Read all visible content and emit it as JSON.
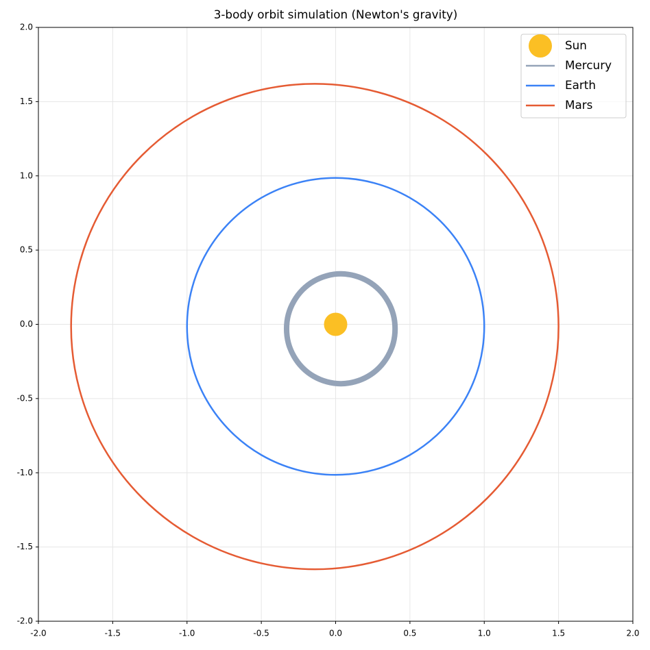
{
  "chart_data": {
    "type": "line",
    "title": "3-body orbit simulation (Newton's gravity)",
    "xlim": [
      -2,
      2
    ],
    "ylim": [
      -2,
      2
    ],
    "xticks": [
      {
        "value": -2,
        "label": "-2.0"
      },
      {
        "value": -1.5,
        "label": "-1.5"
      },
      {
        "value": -1,
        "label": "-1.0"
      },
      {
        "value": -0.5,
        "label": "-0.5"
      },
      {
        "value": 0,
        "label": "0.0"
      },
      {
        "value": 0.5,
        "label": "0.5"
      },
      {
        "value": 1,
        "label": "1.0"
      },
      {
        "value": 1.5,
        "label": "1.5"
      },
      {
        "value": 2,
        "label": "2.0"
      }
    ],
    "yticks": [
      {
        "value": -2,
        "label": "-2.0"
      },
      {
        "value": -1.5,
        "label": "-1.5"
      },
      {
        "value": -1,
        "label": "-1.0"
      },
      {
        "value": -0.5,
        "label": "-0.5"
      },
      {
        "value": 0,
        "label": "0.0"
      },
      {
        "value": 0.5,
        "label": "0.5"
      },
      {
        "value": 1,
        "label": "1.0"
      },
      {
        "value": 1.5,
        "label": "1.5"
      },
      {
        "value": 2,
        "label": "2.0"
      }
    ],
    "grid": true,
    "legend": "upper right",
    "series": [
      {
        "name": "Sun",
        "color": "#fbbf24",
        "style": "marker",
        "x": [
          0
        ],
        "y": [
          0
        ]
      },
      {
        "name": "Mercury",
        "color": "#94a3b8",
        "style": "line",
        "x": [
          0.4,
          0.388,
          0.351,
          0.293,
          0.218,
          0.129,
          0.035,
          -0.059,
          -0.148,
          -0.223,
          -0.281,
          -0.318,
          -0.33,
          -0.318,
          -0.281,
          -0.223,
          -0.148,
          -0.059,
          0.035,
          0.129,
          0.218,
          0.293,
          0.351,
          0.388,
          0.4
        ],
        "y": [
          -0.03,
          0.066,
          0.155,
          0.232,
          0.29,
          0.327,
          0.34,
          0.327,
          0.29,
          0.232,
          0.155,
          0.066,
          -0.03,
          -0.126,
          -0.215,
          -0.292,
          -0.35,
          -0.387,
          -0.4,
          -0.387,
          -0.35,
          -0.292,
          -0.215,
          -0.126,
          -0.03
        ]
      },
      {
        "name": "Earth",
        "color": "#3b82f6",
        "style": "line",
        "x": [
          1.0,
          0.966,
          0.866,
          0.707,
          0.5,
          0.259,
          0,
          -0.259,
          -0.5,
          -0.707,
          -0.866,
          -0.966,
          -1.0,
          -0.966,
          -0.866,
          -0.707,
          -0.5,
          -0.259,
          0,
          0.259,
          0.5,
          0.707,
          0.866,
          0.966,
          1.0
        ],
        "y": [
          -0.014,
          0.245,
          0.486,
          0.693,
          0.852,
          0.952,
          0.986,
          0.952,
          0.852,
          0.693,
          0.486,
          0.245,
          -0.014,
          -0.273,
          -0.514,
          -0.721,
          -0.88,
          -0.98,
          -1.014,
          -0.98,
          -0.88,
          -0.721,
          -0.514,
          -0.273,
          -0.014
        ]
      },
      {
        "name": "Mars",
        "color": "#e55b33",
        "style": "line",
        "x": [
          1.5,
          1.444,
          1.28,
          1.02,
          0.68,
          0.284,
          -0.14,
          -0.564,
          -0.96,
          -1.3,
          -1.56,
          -1.724,
          -1.78,
          -1.724,
          -1.56,
          -1.3,
          -0.96,
          -0.564,
          -0.14,
          0.284,
          0.68,
          1.02,
          1.28,
          1.444,
          1.5
        ],
        "y": [
          -0.015,
          0.408,
          0.803,
          1.141,
          1.401,
          1.564,
          1.62,
          1.564,
          1.401,
          1.141,
          0.803,
          0.408,
          -0.015,
          -0.438,
          -0.833,
          -1.171,
          -1.431,
          -1.594,
          -1.65,
          -1.594,
          -1.431,
          -1.171,
          -0.833,
          -0.438,
          -0.015
        ]
      }
    ]
  }
}
